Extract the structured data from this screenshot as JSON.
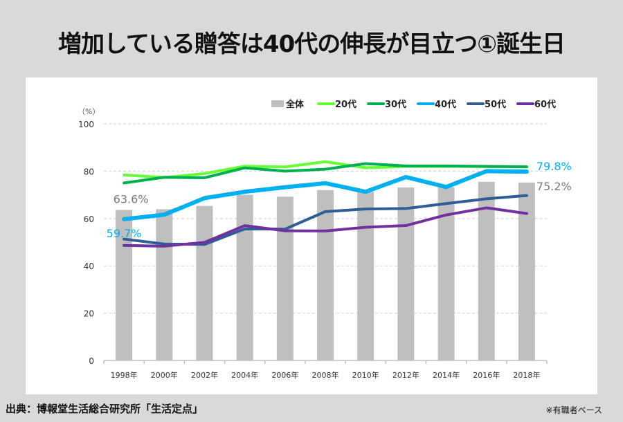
{
  "title": "増加している贈答は40代の伸長が目立つ①誕生日",
  "footer": {
    "source": "出典：博報堂生活総合研究所「生活定点」",
    "note": "※有職者ベース"
  },
  "chart_data": {
    "type": "bar+line",
    "title": "増加している贈答は40代の伸長が目立つ①誕生日",
    "ylabel": "（%）",
    "xlabel": "",
    "ylim": [
      0,
      100
    ],
    "yticks": [
      0,
      20,
      40,
      60,
      80,
      100
    ],
    "grid": true,
    "legend_position": "top-right",
    "categories": [
      "1998年",
      "2000年",
      "2002年",
      "2004年",
      "2006年",
      "2008年",
      "2010年",
      "2012年",
      "2014年",
      "2016年",
      "2018年"
    ],
    "bar_series": {
      "name": "全体",
      "color": "#bfbfbf",
      "values": [
        63.6,
        63.9,
        65.3,
        70.0,
        69.2,
        72.0,
        71.3,
        73.1,
        73.2,
        75.5,
        75.2
      ]
    },
    "series": [
      {
        "name": "20代",
        "color": "#66ff33",
        "values": [
          78.4,
          77.3,
          79.0,
          82.1,
          81.8,
          84.0,
          81.4,
          82.0,
          82.0,
          81.9,
          81.9
        ]
      },
      {
        "name": "30代",
        "color": "#00b050",
        "values": [
          75.0,
          77.4,
          77.2,
          81.4,
          80.0,
          80.8,
          83.2,
          82.2,
          82.2,
          82.0,
          81.8
        ]
      },
      {
        "name": "40代",
        "color": "#00b0f0",
        "values": [
          59.7,
          61.6,
          68.6,
          71.3,
          73.2,
          74.9,
          71.3,
          77.5,
          73.3,
          80.0,
          79.8
        ]
      },
      {
        "name": "50代",
        "color": "#2f5e96",
        "values": [
          51.3,
          49.2,
          49.0,
          55.6,
          55.5,
          62.9,
          64.0,
          64.2,
          66.3,
          68.3,
          69.7
        ]
      },
      {
        "name": "60代",
        "color": "#7030a0",
        "values": [
          48.6,
          48.3,
          49.9,
          57.0,
          54.8,
          54.7,
          56.3,
          57.0,
          61.5,
          64.5,
          62.1
        ]
      }
    ],
    "annotations": [
      {
        "text": "63.6%",
        "series": "全体",
        "index": 0,
        "color": "#777777"
      },
      {
        "text": "59.7%",
        "series": "40代",
        "index": 0,
        "color": "#00b0f0"
      },
      {
        "text": "79.8%",
        "series": "40代",
        "index": 10,
        "color": "#00b0f0"
      },
      {
        "text": "75.2%",
        "series": "全体",
        "index": 10,
        "color": "#777777"
      }
    ]
  }
}
